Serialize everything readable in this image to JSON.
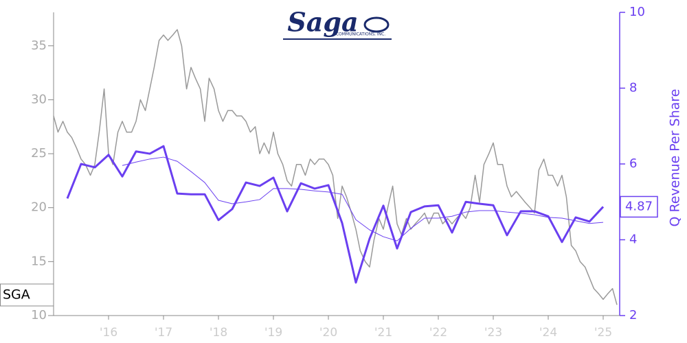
{
  "logo": {
    "text": "Saga",
    "subtext": "COMMUNICATIONS, INC."
  },
  "chart_data": {
    "type": "line",
    "y2label": "Q Revenue Per Share",
    "xlim": [
      2015.0,
      2025.3
    ],
    "xticks": [
      {
        "value": 2016,
        "label": "'16"
      },
      {
        "value": 2017,
        "label": "'17"
      },
      {
        "value": 2018,
        "label": "'18"
      },
      {
        "value": 2019,
        "label": "'19"
      },
      {
        "value": 2020,
        "label": "'20"
      },
      {
        "value": 2021,
        "label": "'21"
      },
      {
        "value": 2022,
        "label": "'22"
      },
      {
        "value": 2023,
        "label": "'23"
      },
      {
        "value": 2024,
        "label": "'24"
      },
      {
        "value": 2025,
        "label": "'25"
      }
    ],
    "ylim": [
      10,
      38.1
    ],
    "yticks": [
      10,
      15,
      20,
      25,
      30,
      35
    ],
    "y2lim": [
      2,
      10
    ],
    "y2ticks": [
      2,
      4,
      6,
      8,
      10
    ],
    "series": [
      {
        "name": "SGA",
        "color": "#999999",
        "x": [
          2015.0,
          2015.08,
          2015.17,
          2015.25,
          2015.33,
          2015.42,
          2015.5,
          2015.58,
          2015.67,
          2015.75,
          2015.83,
          2015.92,
          2016.0,
          2016.08,
          2016.17,
          2016.25,
          2016.33,
          2016.42,
          2016.5,
          2016.58,
          2016.67,
          2016.75,
          2016.83,
          2016.92,
          2017.0,
          2017.08,
          2017.17,
          2017.25,
          2017.33,
          2017.42,
          2017.5,
          2017.58,
          2017.67,
          2017.75,
          2017.83,
          2017.92,
          2018.0,
          2018.08,
          2018.17,
          2018.25,
          2018.33,
          2018.42,
          2018.5,
          2018.58,
          2018.67,
          2018.75,
          2018.83,
          2018.92,
          2019.0,
          2019.08,
          2019.17,
          2019.25,
          2019.33,
          2019.42,
          2019.5,
          2019.58,
          2019.67,
          2019.75,
          2019.83,
          2019.92,
          2020.0,
          2020.08,
          2020.17,
          2020.25,
          2020.33,
          2020.42,
          2020.5,
          2020.58,
          2020.67,
          2020.75,
          2020.83,
          2020.92,
          2021.0,
          2021.08,
          2021.17,
          2021.25,
          2021.33,
          2021.42,
          2021.5,
          2021.58,
          2021.67,
          2021.75,
          2021.83,
          2021.92,
          2022.0,
          2022.08,
          2022.17,
          2022.25,
          2022.33,
          2022.42,
          2022.5,
          2022.58,
          2022.67,
          2022.75,
          2022.83,
          2022.92,
          2023.0,
          2023.08,
          2023.17,
          2023.25,
          2023.33,
          2023.42,
          2023.5,
          2023.58,
          2023.67,
          2023.75,
          2023.83,
          2023.92,
          2024.0,
          2024.08,
          2024.17,
          2024.25,
          2024.33,
          2024.42,
          2024.5,
          2024.58,
          2024.67,
          2024.75,
          2024.83,
          2024.92,
          2025.0,
          2025.08,
          2025.17,
          2025.25
        ],
        "values": [
          28.5,
          27,
          28,
          27,
          26.5,
          25.5,
          24.5,
          24,
          23,
          24,
          27,
          31,
          25,
          24,
          27,
          28,
          27,
          27,
          28,
          30,
          29,
          31,
          33,
          35.5,
          36,
          35.5,
          36,
          36.5,
          35,
          31,
          33,
          32,
          31,
          28,
          32,
          31,
          29,
          28,
          29,
          29,
          28.5,
          28.5,
          28,
          27,
          27.5,
          25,
          26,
          25,
          27,
          25,
          24,
          22.5,
          22,
          24,
          24,
          23,
          24.5,
          24,
          24.5,
          24.5,
          24,
          23,
          19,
          22,
          21,
          19.5,
          18,
          16,
          15,
          14.5,
          17,
          19,
          18,
          20,
          22,
          18.5,
          17.5,
          19,
          18,
          18.5,
          19,
          19.5,
          18.5,
          19.5,
          19.5,
          18.5,
          19,
          18.5,
          19,
          19.5,
          19,
          20,
          23,
          20.5,
          24,
          25,
          26,
          24,
          24,
          22,
          21,
          21.5,
          21,
          20.5,
          20,
          19.5,
          23.5,
          24.5,
          23,
          23,
          22,
          23,
          21,
          16.5,
          16,
          15,
          14.5,
          13.5,
          12.5,
          12,
          11.5,
          12,
          12.5,
          11
        ]
      },
      {
        "color": "#6a3ff0",
        "axis": "y2",
        "width": 3,
        "x": [
          2015.25,
          2015.5,
          2015.75,
          2016.0,
          2016.25,
          2016.5,
          2016.75,
          2017.0,
          2017.25,
          2017.5,
          2017.75,
          2018.0,
          2018.25,
          2018.5,
          2018.75,
          2019.0,
          2019.25,
          2019.5,
          2019.75,
          2020.0,
          2020.25,
          2020.5,
          2020.75,
          2021.0,
          2021.25,
          2021.5,
          2021.75,
          2022.0,
          2022.25,
          2022.5,
          2022.75,
          2023.0,
          2023.25,
          2023.5,
          2023.75,
          2024.0,
          2024.25,
          2024.5,
          2024.75,
          2025.0
        ],
        "values": [
          5.09,
          6.0,
          5.91,
          6.24,
          5.67,
          6.33,
          6.27,
          6.47,
          5.22,
          5.2,
          5.2,
          4.52,
          4.81,
          5.51,
          5.42,
          5.64,
          4.75,
          5.49,
          5.35,
          5.44,
          4.44,
          2.87,
          4.03,
          4.9,
          3.77,
          4.73,
          4.88,
          4.91,
          4.19,
          5.0,
          4.95,
          4.91,
          4.12,
          4.75,
          4.75,
          4.62,
          3.94,
          4.59,
          4.48,
          4.87
        ]
      },
      {
        "color": "#6a3ff0",
        "axis": "y2",
        "width": 1,
        "x": [
          2015.25,
          2015.5,
          2015.75,
          2016.0,
          2016.25,
          2016.5,
          2016.75,
          2017.0,
          2017.25,
          2017.5,
          2017.75,
          2018.0,
          2018.25,
          2018.5,
          2018.75,
          2019.0,
          2019.25,
          2019.5,
          2019.75,
          2020.0,
          2020.25,
          2020.5,
          2020.75,
          2021.0,
          2021.25,
          2021.5,
          2021.75,
          2022.0,
          2022.25,
          2022.5,
          2022.75,
          2023.0,
          2023.25,
          2023.5,
          2023.75,
          2024.0,
          2024.25,
          2024.5,
          2024.75,
          2025.0
        ],
        "values": [
          null,
          null,
          null,
          null,
          5.96,
          6.05,
          6.13,
          6.18,
          6.07,
          5.8,
          5.51,
          5.04,
          4.95,
          5.0,
          5.06,
          5.35,
          5.35,
          5.33,
          5.29,
          5.26,
          5.2,
          4.53,
          4.26,
          4.08,
          3.97,
          4.3,
          4.57,
          4.57,
          4.62,
          4.73,
          4.77,
          4.77,
          4.73,
          4.7,
          4.66,
          4.59,
          4.57,
          4.5,
          4.43,
          4.46
        ]
      }
    ]
  }
}
